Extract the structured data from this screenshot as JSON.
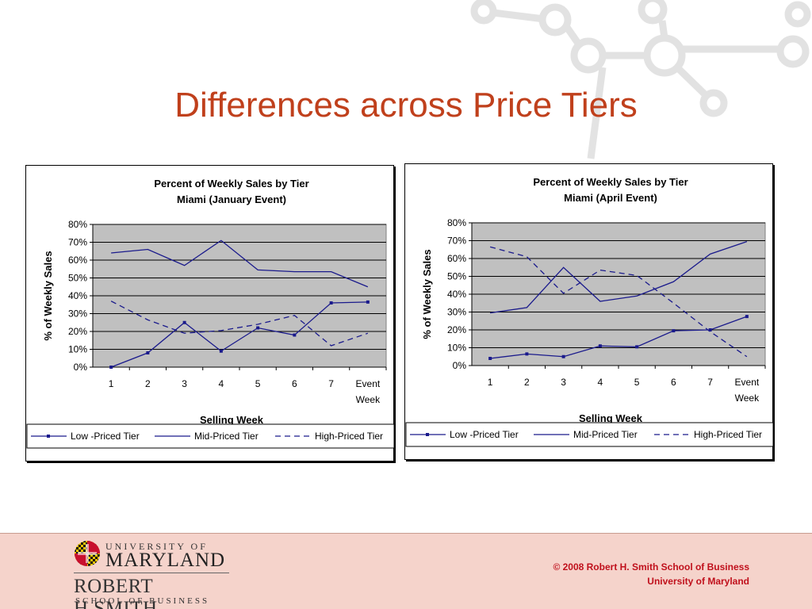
{
  "slide": {
    "title": "Differences across Price Tiers"
  },
  "colors": {
    "title": "#c0401c",
    "line": "#1a1a8c",
    "plot_bg": "#c0c0c0",
    "footer_bg": "#f5d3cb",
    "footer_text": "#c0101c"
  },
  "chart_data": [
    {
      "type": "line",
      "title": "Percent of Weekly Sales by Tier",
      "subtitle": "Miami (January Event)",
      "xlabel": "Selling Week",
      "ylabel": "% of Weekly Sales",
      "categories": [
        "1",
        "2",
        "3",
        "4",
        "5",
        "6",
        "7",
        "Event Week"
      ],
      "yticks": [
        "0%",
        "10%",
        "20%",
        "30%",
        "40%",
        "50%",
        "60%",
        "70%",
        "80%"
      ],
      "ylim": [
        0,
        0.8
      ],
      "grid": true,
      "legend_position": "bottom",
      "series": [
        {
          "name": "Low -Priced Tier",
          "style": "solid-marker",
          "values": [
            0.0,
            0.08,
            0.25,
            0.09,
            0.22,
            0.18,
            0.36,
            0.365
          ]
        },
        {
          "name": "Mid-Priced Tier",
          "style": "solid",
          "values": [
            0.64,
            0.66,
            0.57,
            0.71,
            0.545,
            0.535,
            0.535,
            0.45
          ]
        },
        {
          "name": "High-Priced Tier",
          "style": "dashed",
          "values": [
            0.37,
            0.265,
            0.19,
            0.205,
            0.24,
            0.29,
            0.12,
            0.19
          ]
        }
      ]
    },
    {
      "type": "line",
      "title": "Percent of Weekly Sales by Tier",
      "subtitle": "Miami (April Event)",
      "xlabel": "Selling Week",
      "ylabel": "% of Weekly Sales",
      "categories": [
        "1",
        "2",
        "3",
        "4",
        "5",
        "6",
        "7",
        "Event Week"
      ],
      "yticks": [
        "0%",
        "10%",
        "20%",
        "30%",
        "40%",
        "50%",
        "60%",
        "70%",
        "80%"
      ],
      "ylim": [
        0,
        0.8
      ],
      "grid": true,
      "legend_position": "bottom",
      "series": [
        {
          "name": "Low -Priced Tier",
          "style": "solid-marker",
          "values": [
            0.04,
            0.065,
            0.05,
            0.11,
            0.105,
            0.195,
            0.2,
            0.275
          ]
        },
        {
          "name": "Mid-Priced Tier",
          "style": "solid",
          "values": [
            0.295,
            0.325,
            0.55,
            0.36,
            0.39,
            0.47,
            0.625,
            0.695
          ]
        },
        {
          "name": "High-Priced Tier",
          "style": "dashed",
          "values": [
            0.665,
            0.61,
            0.405,
            0.535,
            0.505,
            0.35,
            0.19,
            0.05
          ]
        }
      ]
    }
  ],
  "footer": {
    "university_line1": "UNIVERSITY OF",
    "university_line2": "MARYLAND",
    "school_line1": "ROBERT H.SMITH",
    "school_line2": "SCHOOL OF BUSINESS",
    "copyright_line1": "© 2008 Robert H. Smith School of Business",
    "copyright_line2": "University of Maryland"
  }
}
